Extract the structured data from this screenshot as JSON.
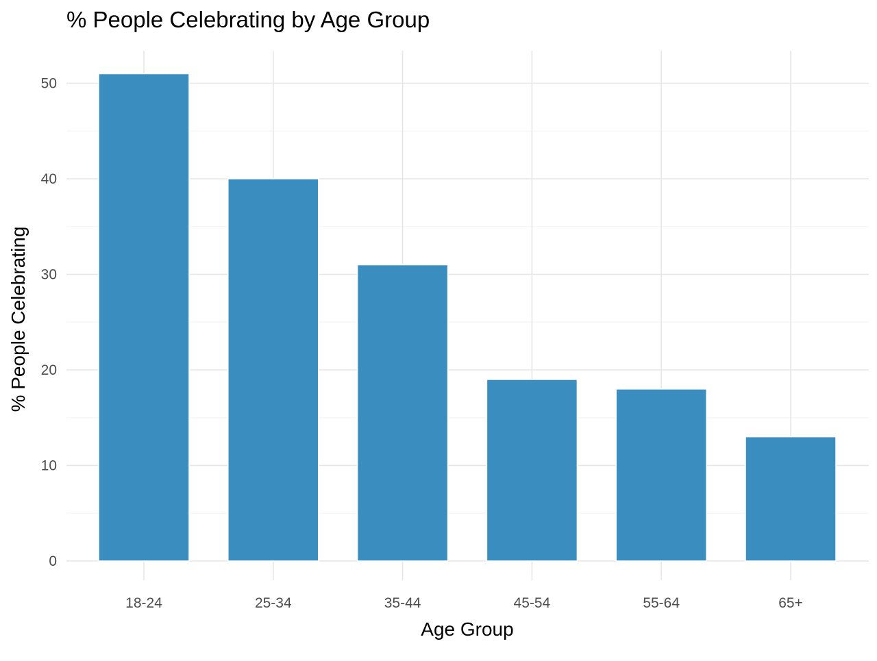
{
  "chart_data": {
    "type": "bar",
    "title": "% People Celebrating by Age Group",
    "xlabel": "Age Group",
    "ylabel": "% People Celebrating",
    "categories": [
      "18-24",
      "25-34",
      "35-44",
      "45-54",
      "55-64",
      "65+"
    ],
    "values": [
      51,
      40,
      31,
      19,
      18,
      13
    ],
    "ylim": [
      0,
      53.5
    ],
    "yticks": [
      0,
      10,
      20,
      30,
      40,
      50
    ],
    "grid": true,
    "legend": "none",
    "colors": {
      "bar": "#3a8ebf",
      "bar_outline": "#ffffff",
      "grid_major": "#e6e6e6",
      "grid_minor": "#f4f4f4",
      "background": "#ffffff"
    }
  }
}
